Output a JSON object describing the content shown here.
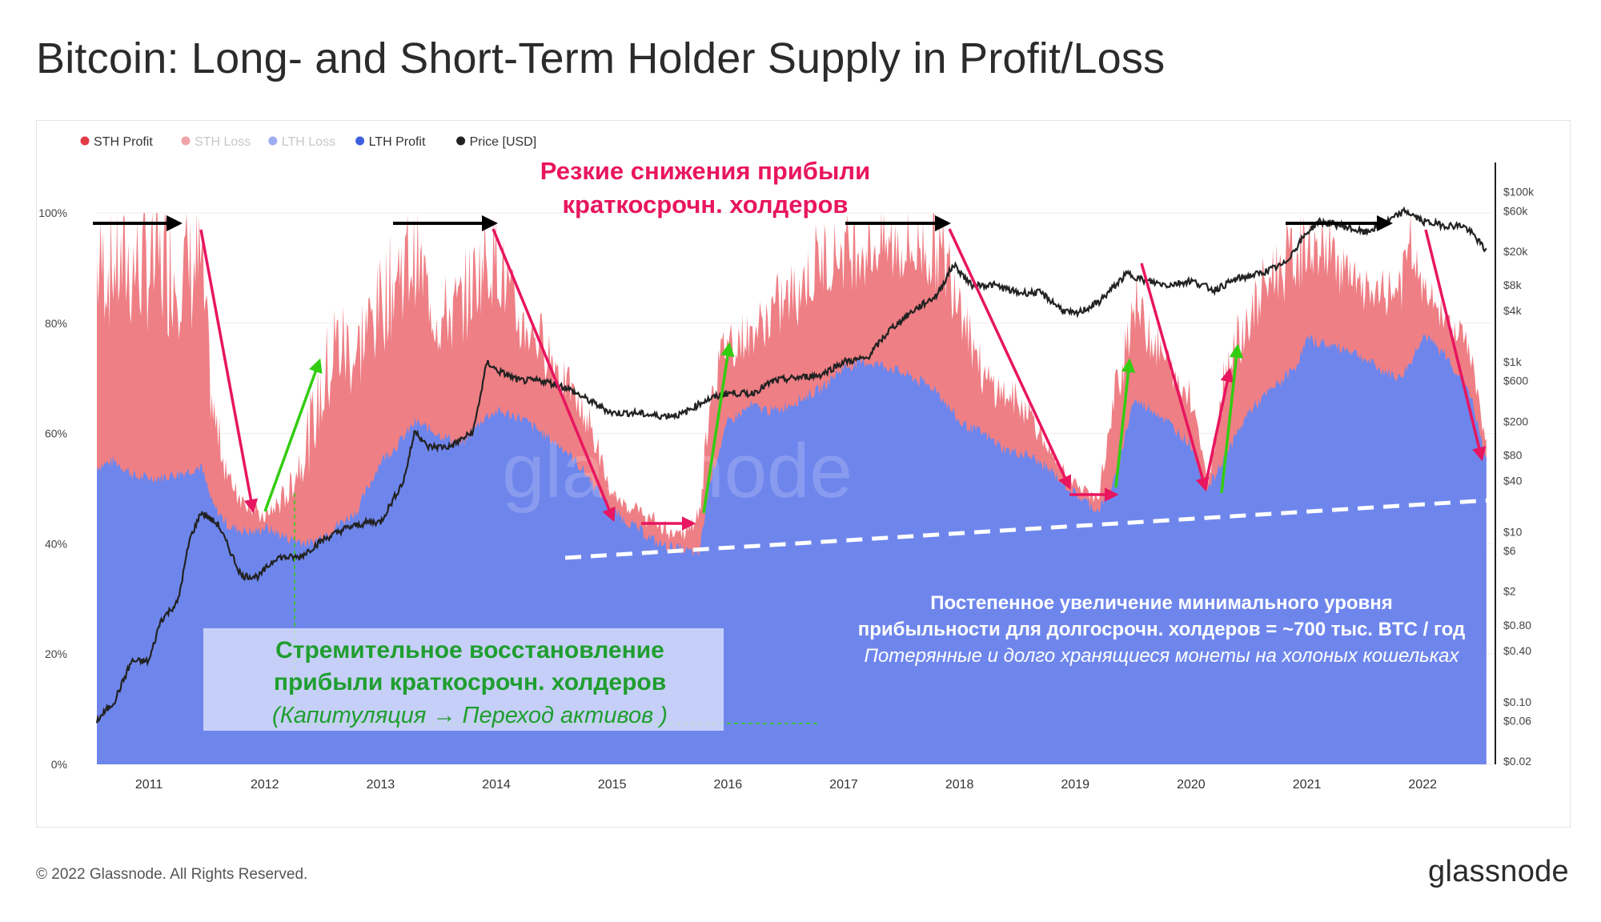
{
  "title": "Bitcoin: Long- and Short-Term Holder Supply in Profit/Loss",
  "footer": {
    "copyright": "© 2022 Glassnode. All Rights Reserved.",
    "logo": "glassnode"
  },
  "watermark": "glassnode",
  "colors": {
    "sth_profit": "#ee7f85",
    "sth_loss": "#f4b8bb",
    "lth_loss": "#aab7f2",
    "lth_profit": "#6e86ec",
    "price": "#222222",
    "annot_red": "#e8155f",
    "annot_green": "#1f9e2f",
    "arrow_black": "#000000",
    "arrow_green": "#33cc11",
    "dash_white": "#ffffff"
  },
  "chart_data": {
    "type": "area",
    "title": "Bitcoin: Long- and Short-Term Holder Supply in Profit/Loss",
    "xlabel": "",
    "ylabel": "",
    "xlim": [
      2010.55,
      2022.6
    ],
    "ylim": [
      0,
      100
    ],
    "y_tick_labels": [
      "0%",
      "20%",
      "40%",
      "60%",
      "80%",
      "100%"
    ],
    "y_tick_values": [
      0,
      20,
      40,
      60,
      80,
      100
    ],
    "x_tick_labels": [
      "2011",
      "2012",
      "2013",
      "2014",
      "2015",
      "2016",
      "2017",
      "2018",
      "2019",
      "2020",
      "2021",
      "2022"
    ],
    "x_tick_values": [
      2011,
      2012,
      2013,
      2014,
      2015,
      2016,
      2017,
      2018,
      2019,
      2020,
      2021,
      2022
    ],
    "y2_scale": "log",
    "y2_tick_labels": [
      "$0.02",
      "$0.06",
      "$0.10",
      "$0.40",
      "$0.80",
      "$2",
      "$6",
      "$10",
      "$40",
      "$80",
      "$200",
      "$600",
      "$1k",
      "$4k",
      "$8k",
      "$20k",
      "$60k",
      "$100k"
    ],
    "y2_tick_values": [
      0.02,
      0.06,
      0.1,
      0.4,
      0.8,
      2,
      6,
      10,
      40,
      80,
      200,
      600,
      1000,
      4000,
      8000,
      20000,
      60000,
      100000
    ],
    "y2lim": [
      0.02,
      150000
    ],
    "legend_placement": "top-left",
    "legend": [
      {
        "name": "STH Profit",
        "color": "#e23b45",
        "muted": false
      },
      {
        "name": "STH Loss",
        "color": "#f0a3a8",
        "muted": true
      },
      {
        "name": "LTH Loss",
        "color": "#9eacf0",
        "muted": true
      },
      {
        "name": "LTH Profit",
        "color": "#3d5fe0",
        "muted": false
      },
      {
        "name": "Price [USD]",
        "color": "#222222",
        "muted": false
      }
    ],
    "grid": true,
    "series": [
      {
        "name": "LTH Profit",
        "unit": "%",
        "x": [
          2010.55,
          2010.7,
          2010.9,
          2011.1,
          2011.3,
          2011.45,
          2011.55,
          2011.7,
          2011.9,
          2012.0,
          2012.2,
          2012.4,
          2012.6,
          2012.8,
          2013.0,
          2013.15,
          2013.3,
          2013.5,
          2013.7,
          2013.9,
          2014.0,
          2014.2,
          2014.4,
          2014.6,
          2014.8,
          2015.0,
          2015.2,
          2015.4,
          2015.6,
          2015.75,
          2015.85,
          2016.0,
          2016.2,
          2016.4,
          2016.6,
          2016.8,
          2017.0,
          2017.2,
          2017.4,
          2017.6,
          2017.8,
          2018.0,
          2018.2,
          2018.4,
          2018.6,
          2018.8,
          2019.0,
          2019.2,
          2019.35,
          2019.5,
          2019.7,
          2019.9,
          2020.0,
          2020.15,
          2020.3,
          2020.5,
          2020.7,
          2020.9,
          2021.0,
          2021.2,
          2021.4,
          2021.6,
          2021.8,
          2021.9,
          2022.0,
          2022.2,
          2022.4,
          2022.55
        ],
        "y": [
          54,
          55,
          52,
          52,
          53,
          54,
          47,
          43,
          42,
          43,
          41,
          40,
          43,
          46,
          55,
          58,
          62,
          60,
          58,
          63,
          64,
          63,
          60,
          57,
          52,
          46,
          43,
          40,
          39,
          38,
          52,
          62,
          65,
          64,
          66,
          68,
          72,
          73,
          72,
          70,
          68,
          62,
          60,
          57,
          56,
          53,
          49,
          46,
          52,
          66,
          64,
          60,
          58,
          50,
          56,
          64,
          68,
          72,
          77,
          76,
          75,
          72,
          70,
          73,
          78,
          74,
          68,
          55
        ]
      },
      {
        "name": "LTH Loss",
        "unit": "%",
        "x": [
          2010.55,
          2022.55
        ],
        "y": [
          0,
          0
        ]
      },
      {
        "name": "STH Loss",
        "unit": "%",
        "x": [
          2010.55,
          2022.55
        ],
        "y": [
          0,
          0
        ]
      },
      {
        "name": "STH Profit",
        "unit": "%",
        "x": [
          2010.55,
          2010.7,
          2010.9,
          2011.1,
          2011.3,
          2011.45,
          2011.55,
          2011.7,
          2011.9,
          2012.0,
          2012.2,
          2012.4,
          2012.6,
          2012.8,
          2013.0,
          2013.15,
          2013.3,
          2013.5,
          2013.7,
          2013.9,
          2014.0,
          2014.2,
          2014.4,
          2014.6,
          2014.8,
          2015.0,
          2015.2,
          2015.4,
          2015.6,
          2015.75,
          2015.85,
          2016.0,
          2016.2,
          2016.4,
          2016.6,
          2016.8,
          2017.0,
          2017.2,
          2017.4,
          2017.6,
          2017.8,
          2018.0,
          2018.2,
          2018.4,
          2018.6,
          2018.8,
          2019.0,
          2019.2,
          2019.35,
          2019.5,
          2019.7,
          2019.9,
          2020.0,
          2020.15,
          2020.3,
          2020.5,
          2020.7,
          2020.9,
          2021.0,
          2021.2,
          2021.4,
          2021.6,
          2021.8,
          2021.9,
          2022.0,
          2022.2,
          2022.4,
          2022.55
        ],
        "y": [
          44,
          43,
          46,
          47,
          45,
          44,
          20,
          10,
          5,
          2,
          10,
          25,
          40,
          35,
          35,
          38,
          36,
          25,
          30,
          35,
          34,
          20,
          20,
          15,
          12,
          3,
          4,
          4,
          3,
          8,
          20,
          18,
          15,
          22,
          25,
          28,
          26,
          25,
          27,
          28,
          31,
          30,
          12,
          12,
          10,
          3,
          2,
          3,
          18,
          22,
          15,
          10,
          12,
          1,
          20,
          20,
          25,
          25,
          20,
          21,
          15,
          15,
          20,
          25,
          10,
          8,
          10,
          3
        ]
      },
      {
        "name": "Price [USD]",
        "unit": "USD (log scale, right axis)",
        "x": [
          2010.55,
          2010.7,
          2010.85,
          2011.0,
          2011.1,
          2011.25,
          2011.35,
          2011.45,
          2011.6,
          2011.8,
          2011.95,
          2012.1,
          2012.3,
          2012.5,
          2012.7,
          2012.9,
          2013.0,
          2013.2,
          2013.3,
          2013.4,
          2013.6,
          2013.8,
          2013.92,
          2014.0,
          2014.2,
          2014.4,
          2014.6,
          2014.8,
          2015.0,
          2015.2,
          2015.4,
          2015.6,
          2015.8,
          2016.0,
          2016.2,
          2016.4,
          2016.6,
          2016.8,
          2017.0,
          2017.2,
          2017.4,
          2017.6,
          2017.8,
          2017.95,
          2018.1,
          2018.3,
          2018.5,
          2018.7,
          2018.9,
          2019.0,
          2019.2,
          2019.45,
          2019.6,
          2019.8,
          2020.0,
          2020.2,
          2020.4,
          2020.6,
          2020.8,
          2021.0,
          2021.1,
          2021.3,
          2021.5,
          2021.7,
          2021.85,
          2022.0,
          2022.2,
          2022.35,
          2022.45,
          2022.55
        ],
        "y": [
          0.06,
          0.1,
          0.3,
          0.3,
          0.9,
          1.5,
          8,
          17,
          12,
          3,
          3,
          5,
          5,
          8,
          11,
          13,
          13,
          40,
          160,
          100,
          100,
          150,
          1000,
          800,
          600,
          600,
          500,
          350,
          250,
          250,
          230,
          240,
          350,
          430,
          420,
          600,
          650,
          700,
          1000,
          1100,
          2400,
          4000,
          6000,
          14000,
          8000,
          8000,
          6500,
          6500,
          4000,
          3600,
          5000,
          11000,
          9000,
          8000,
          9000,
          7000,
          9500,
          11000,
          14000,
          33000,
          45000,
          40000,
          33000,
          45000,
          60000,
          45000,
          40000,
          40000,
          30000,
          20000
        ]
      }
    ],
    "annotations": {
      "top_heading": [
        "Резкие снижения прибыли",
        "краткосрочн. холдеров"
      ],
      "left_box": [
        "Стремительное восстановление",
        "прибыли краткосрочн. холдеров",
        "(Капитуляция → Переход активов )"
      ],
      "right_text": [
        "Постепенное увеличение минимального уровня",
        "прибыльности для долгосрочн. холдеров = ~700 тыс. BTC / год",
        "Потерянные и долго хранящиеся монеты на холоных кошельках"
      ]
    }
  }
}
